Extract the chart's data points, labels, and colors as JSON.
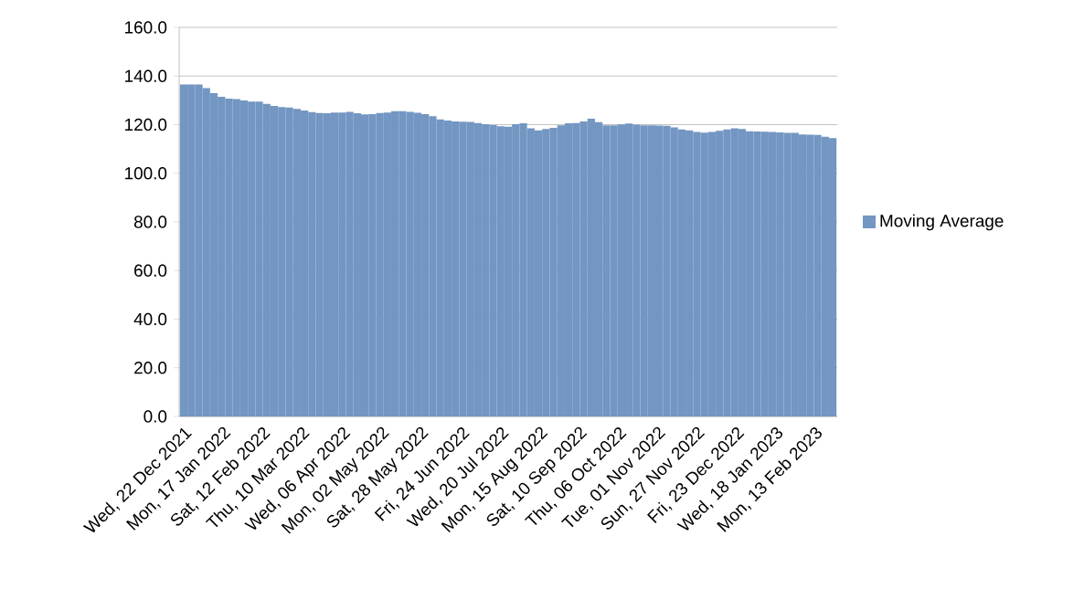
{
  "chart_data": {
    "type": "bar",
    "x": [
      "2021-12-22",
      "2021-12-27",
      "2022-01-01",
      "2022-01-06",
      "2022-01-11",
      "2022-01-16",
      "2022-01-21",
      "2022-01-26",
      "2022-01-31",
      "2022-02-05",
      "2022-02-10",
      "2022-02-15",
      "2022-02-20",
      "2022-02-25",
      "2022-03-02",
      "2022-03-07",
      "2022-03-12",
      "2022-03-17",
      "2022-03-22",
      "2022-03-27",
      "2022-04-01",
      "2022-04-06",
      "2022-04-11",
      "2022-04-16",
      "2022-04-21",
      "2022-04-26",
      "2022-05-01",
      "2022-05-06",
      "2022-05-11",
      "2022-05-16",
      "2022-05-21",
      "2022-05-26",
      "2022-05-31",
      "2022-06-05",
      "2022-06-10",
      "2022-06-15",
      "2022-06-20",
      "2022-06-25",
      "2022-06-30",
      "2022-07-05",
      "2022-07-10",
      "2022-07-15",
      "2022-07-20",
      "2022-07-25",
      "2022-07-30",
      "2022-08-04",
      "2022-08-09",
      "2022-08-14",
      "2022-08-19",
      "2022-08-24",
      "2022-08-29",
      "2022-09-03",
      "2022-09-08",
      "2022-09-13",
      "2022-09-18",
      "2022-09-23",
      "2022-09-28",
      "2022-10-03",
      "2022-10-08",
      "2022-10-13",
      "2022-10-18",
      "2022-10-23",
      "2022-10-28",
      "2022-11-02",
      "2022-11-07",
      "2022-11-12",
      "2022-11-17",
      "2022-11-22",
      "2022-11-27",
      "2022-12-02",
      "2022-12-07",
      "2022-12-12",
      "2022-12-17",
      "2022-12-22",
      "2022-12-27",
      "2023-01-01",
      "2023-01-06",
      "2023-01-11",
      "2023-01-16",
      "2023-01-21",
      "2023-01-26",
      "2023-01-31",
      "2023-02-05",
      "2023-02-10",
      "2023-02-15",
      "2023-02-20",
      "2023-02-25"
    ],
    "series": [
      {
        "name": "Moving Average",
        "color": "#7396c2",
        "values": [
          136.5,
          136.5,
          136.5,
          135,
          133,
          131.5,
          130.7,
          130.5,
          130,
          129.5,
          129.5,
          128.5,
          127.7,
          127.2,
          127,
          126.5,
          125.8,
          125.2,
          124.8,
          124.7,
          125,
          125,
          125.3,
          124.7,
          124.2,
          124.3,
          124.8,
          125,
          125.5,
          125.5,
          125.3,
          124.9,
          124.3,
          123.5,
          122.2,
          121.7,
          121.3,
          121.2,
          121.1,
          120.7,
          120.2,
          119.8,
          119.3,
          119.2,
          120.2,
          120.6,
          118.5,
          117.7,
          118.2,
          118.7,
          119.7,
          120.6,
          120.7,
          121.3,
          122.4,
          121,
          119.7,
          119.7,
          120.1,
          120.5,
          120,
          119.7,
          119.7,
          119.6,
          119.5,
          118.9,
          118,
          117.7,
          117,
          116.7,
          117,
          117.5,
          118,
          118.5,
          118.2,
          117.3,
          117.2,
          117.1,
          117,
          116.8,
          116.6,
          116.6,
          116,
          115.9,
          115.8,
          115,
          114.5
        ]
      }
    ],
    "xlim": [
      "2021-12-19",
      "2023-02-28"
    ],
    "xticks": [
      {
        "value": "2021-12-22",
        "label": "Wed, 22 Dec 2021"
      },
      {
        "value": "2022-01-17",
        "label": "Mon, 17 Jan 2022"
      },
      {
        "value": "2022-02-12",
        "label": "Sat, 12 Feb 2022"
      },
      {
        "value": "2022-03-10",
        "label": "Thu, 10 Mar 2022"
      },
      {
        "value": "2022-04-06",
        "label": "Wed, 06 Apr 2022"
      },
      {
        "value": "2022-05-02",
        "label": "Mon, 02 May 2022"
      },
      {
        "value": "2022-05-28",
        "label": "Sat, 28 May 2022"
      },
      {
        "value": "2022-06-24",
        "label": "Fri, 24 Jun 2022"
      },
      {
        "value": "2022-07-20",
        "label": "Wed, 20 Jul 2022"
      },
      {
        "value": "2022-08-15",
        "label": "Mon, 15 Aug 2022"
      },
      {
        "value": "2022-09-10",
        "label": "Sat, 10 Sep 2022"
      },
      {
        "value": "2022-10-06",
        "label": "Thu, 06 Oct 2022"
      },
      {
        "value": "2022-11-01",
        "label": "Tue, 01 Nov 2022"
      },
      {
        "value": "2022-11-27",
        "label": "Sun, 27 Nov 2022"
      },
      {
        "value": "2022-12-23",
        "label": "Fri, 23 Dec 2022"
      },
      {
        "value": "2023-01-18",
        "label": "Wed, 18 Jan 2023"
      },
      {
        "value": "2023-02-13",
        "label": "Mon, 13 Feb 2023"
      }
    ],
    "ylim": [
      0,
      160
    ],
    "yticks": [
      {
        "value": 0,
        "label": "0.0"
      },
      {
        "value": 20,
        "label": "20.0"
      },
      {
        "value": 40,
        "label": "40.0"
      },
      {
        "value": 60,
        "label": "60.0"
      },
      {
        "value": 80,
        "label": "80.0"
      },
      {
        "value": 100,
        "label": "100.0"
      },
      {
        "value": 120,
        "label": "120.0"
      },
      {
        "value": 140,
        "label": "140.0"
      },
      {
        "value": 160,
        "label": "160.0"
      }
    ],
    "grid": "y",
    "legend": "right"
  }
}
